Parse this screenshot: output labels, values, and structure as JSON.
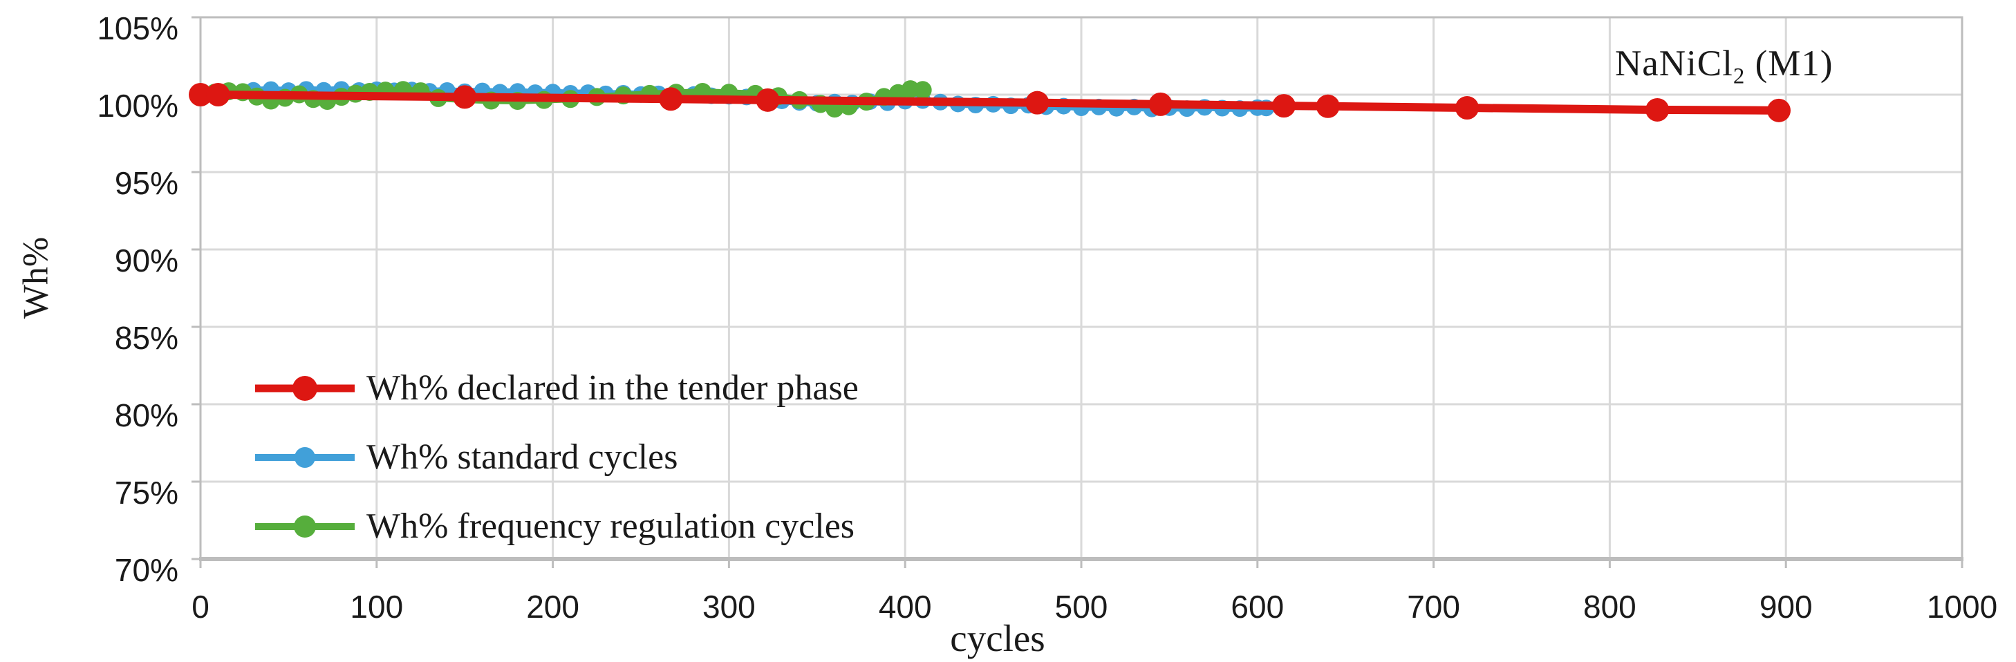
{
  "figure": {
    "annotation": "NaNiCl₂ (M1)",
    "annotation_parts": {
      "pre": "NaNiCl",
      "sub": "2",
      "post": " (M1)"
    },
    "xlabel": "cycles",
    "ylabel": "Wh%"
  },
  "chart_data": {
    "type": "line",
    "title": "NaNiCl2 (M1)",
    "xlabel": "cycles",
    "ylabel": "Wh%",
    "xlim": [
      0,
      1000
    ],
    "ylim": [
      70,
      105
    ],
    "grid": "both",
    "legend_position": "inside lower-left",
    "x_ticks": [
      0,
      100,
      200,
      300,
      400,
      500,
      600,
      700,
      800,
      900,
      1000
    ],
    "x_tick_labels": [
      "0",
      "100",
      "200",
      "300",
      "400",
      "500",
      "600",
      "700",
      "800",
      "900",
      "1000"
    ],
    "y_ticks": [
      105,
      100,
      95,
      90,
      85,
      80,
      75,
      70
    ],
    "y_tick_labels": [
      "105%",
      "100%",
      "95%",
      "90%",
      "85%",
      "80%",
      "75%",
      "70%"
    ],
    "colors": {
      "grid": "#d9d9d9",
      "axis": "#bdbdbd",
      "text": "#1a1a1a"
    },
    "series": [
      {
        "name": "Wh% declared in the tender phase",
        "color": "#dd1712",
        "marker": "circle",
        "marker_radius": 17,
        "line_width": 12,
        "z": 3,
        "points": [
          [
            0,
            100.0
          ],
          [
            10,
            100.0
          ],
          [
            150,
            99.85
          ],
          [
            267,
            99.72
          ],
          [
            322,
            99.65
          ],
          [
            475,
            99.48
          ],
          [
            545,
            99.38
          ],
          [
            615,
            99.28
          ],
          [
            640,
            99.25
          ],
          [
            719,
            99.15
          ],
          [
            827,
            99.02
          ],
          [
            896,
            98.98
          ]
        ]
      },
      {
        "name": "Wh% standard cycles",
        "color": "#41a0d9",
        "marker": "circle",
        "marker_radius": 12,
        "line_width": 10,
        "z": 1,
        "points": [
          [
            30,
            100.28
          ],
          [
            40,
            100.33
          ],
          [
            50,
            100.26
          ],
          [
            60,
            100.34
          ],
          [
            70,
            100.28
          ],
          [
            80,
            100.34
          ],
          [
            90,
            100.27
          ],
          [
            100,
            100.32
          ],
          [
            110,
            100.25
          ],
          [
            120,
            100.3
          ],
          [
            130,
            100.22
          ],
          [
            140,
            100.27
          ],
          [
            150,
            100.19
          ],
          [
            160,
            100.24
          ],
          [
            170,
            100.16
          ],
          [
            180,
            100.21
          ],
          [
            190,
            100.13
          ],
          [
            200,
            100.17
          ],
          [
            210,
            100.09
          ],
          [
            220,
            100.13
          ],
          [
            230,
            100.05
          ],
          [
            240,
            100.09
          ],
          [
            250,
            100.01
          ],
          [
            260,
            100.05
          ],
          [
            270,
            99.97
          ],
          [
            280,
            100.01
          ],
          [
            290,
            99.93
          ],
          [
            300,
            99.9
          ],
          [
            310,
            99.85
          ],
          [
            320,
            99.72
          ],
          [
            330,
            99.6
          ],
          [
            340,
            99.5
          ],
          [
            350,
            99.44
          ],
          [
            360,
            99.52
          ],
          [
            370,
            99.46
          ],
          [
            380,
            99.55
          ],
          [
            390,
            99.48
          ],
          [
            400,
            99.58
          ],
          [
            410,
            99.62
          ],
          [
            420,
            99.52
          ],
          [
            430,
            99.4
          ],
          [
            440,
            99.33
          ],
          [
            450,
            99.38
          ],
          [
            460,
            99.28
          ],
          [
            470,
            99.32
          ],
          [
            480,
            99.22
          ],
          [
            490,
            99.26
          ],
          [
            500,
            99.15
          ],
          [
            510,
            99.2
          ],
          [
            520,
            99.12
          ],
          [
            530,
            99.2
          ],
          [
            540,
            99.08
          ],
          [
            550,
            99.16
          ],
          [
            560,
            99.1
          ],
          [
            570,
            99.18
          ],
          [
            580,
            99.13
          ],
          [
            590,
            99.1
          ],
          [
            600,
            99.16
          ],
          [
            605,
            99.14
          ]
        ]
      },
      {
        "name": "Wh% frequency regulation cycles",
        "color": "#56ae3c",
        "marker": "circle",
        "marker_radius": 13,
        "line_width": 10,
        "z": 2,
        "points": [
          [
            0,
            99.92
          ],
          [
            8,
            100.12
          ],
          [
            16,
            100.22
          ],
          [
            24,
            100.16
          ],
          [
            32,
            99.88
          ],
          [
            40,
            99.62
          ],
          [
            48,
            99.8
          ],
          [
            56,
            100.02
          ],
          [
            64,
            99.72
          ],
          [
            72,
            99.6
          ],
          [
            80,
            99.86
          ],
          [
            88,
            100.06
          ],
          [
            96,
            100.18
          ],
          [
            105,
            100.26
          ],
          [
            115,
            100.3
          ],
          [
            125,
            100.22
          ],
          [
            135,
            99.78
          ],
          [
            150,
            99.68
          ],
          [
            165,
            99.62
          ],
          [
            180,
            99.6
          ],
          [
            195,
            99.66
          ],
          [
            210,
            99.72
          ],
          [
            225,
            99.85
          ],
          [
            240,
            99.95
          ],
          [
            255,
            100.05
          ],
          [
            270,
            100.12
          ],
          [
            285,
            100.18
          ],
          [
            300,
            100.12
          ],
          [
            315,
            100.05
          ],
          [
            328,
            99.9
          ],
          [
            340,
            99.65
          ],
          [
            352,
            99.4
          ],
          [
            360,
            99.1
          ],
          [
            368,
            99.25
          ],
          [
            378,
            99.55
          ],
          [
            388,
            99.85
          ],
          [
            396,
            100.1
          ],
          [
            403,
            100.35
          ],
          [
            410,
            100.3
          ]
        ]
      }
    ]
  }
}
